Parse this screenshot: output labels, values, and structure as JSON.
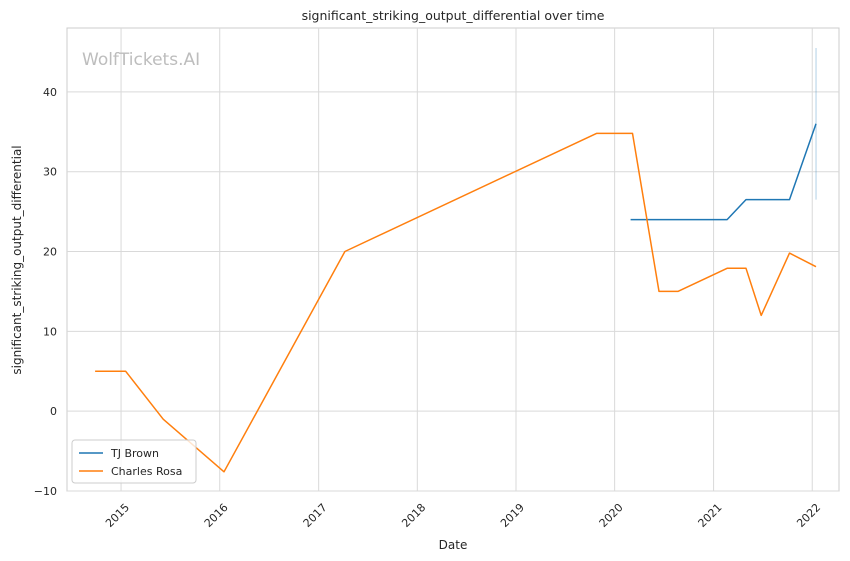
{
  "chart_data": {
    "type": "line",
    "title": "significant_striking_output_differential over time",
    "xlabel": "Date",
    "ylabel": "significant_striking_output_differential",
    "watermark": "WolfTickets.AI",
    "grid": true,
    "legend_position": "lower-left",
    "xlim": [
      "2014-06-15",
      "2022-04-10"
    ],
    "ylim": [
      -10,
      48
    ],
    "x_ticks": [
      "2015-01-01",
      "2016-01-01",
      "2017-01-01",
      "2018-01-01",
      "2019-01-01",
      "2020-01-01",
      "2021-01-01",
      "2022-01-01"
    ],
    "x_tick_labels": [
      "2015",
      "2016",
      "2017",
      "2018",
      "2019",
      "2020",
      "2021",
      "2022"
    ],
    "y_ticks": [
      -10,
      0,
      10,
      20,
      30,
      40
    ],
    "y_tick_labels": [
      "−10",
      "0",
      "10",
      "20",
      "30",
      "40"
    ],
    "series": [
      {
        "name": "TJ Brown",
        "color": "#1f77b4",
        "points": [
          {
            "x": "2020-02-29",
            "y": 24.0
          },
          {
            "x": "2021-02-20",
            "y": 24.0
          },
          {
            "x": "2021-05-01",
            "y": 26.5
          },
          {
            "x": "2021-10-09",
            "y": 26.5
          },
          {
            "x": "2022-01-15",
            "y": 36.0
          }
        ]
      },
      {
        "name": "Charles Rosa",
        "color": "#ff7f0e",
        "points": [
          {
            "x": "2014-09-27",
            "y": 5.0
          },
          {
            "x": "2015-01-18",
            "y": 5.0
          },
          {
            "x": "2015-06-06",
            "y": -1.0
          },
          {
            "x": "2016-01-17",
            "y": -7.6
          },
          {
            "x": "2017-04-08",
            "y": 20.0
          },
          {
            "x": "2019-10-26",
            "y": 34.8
          },
          {
            "x": "2020-03-07",
            "y": 34.8
          },
          {
            "x": "2020-06-13",
            "y": 15.0
          },
          {
            "x": "2020-08-22",
            "y": 15.0
          },
          {
            "x": "2021-02-20",
            "y": 17.9
          },
          {
            "x": "2021-05-01",
            "y": 17.9
          },
          {
            "x": "2021-06-26",
            "y": 12.0
          },
          {
            "x": "2021-10-09",
            "y": 19.8
          },
          {
            "x": "2022-01-15",
            "y": 18.1
          }
        ]
      }
    ],
    "error_bars": [
      {
        "series": "TJ Brown",
        "x": "2022-01-15",
        "y_low": 26.5,
        "y_high": 45.5
      }
    ]
  }
}
